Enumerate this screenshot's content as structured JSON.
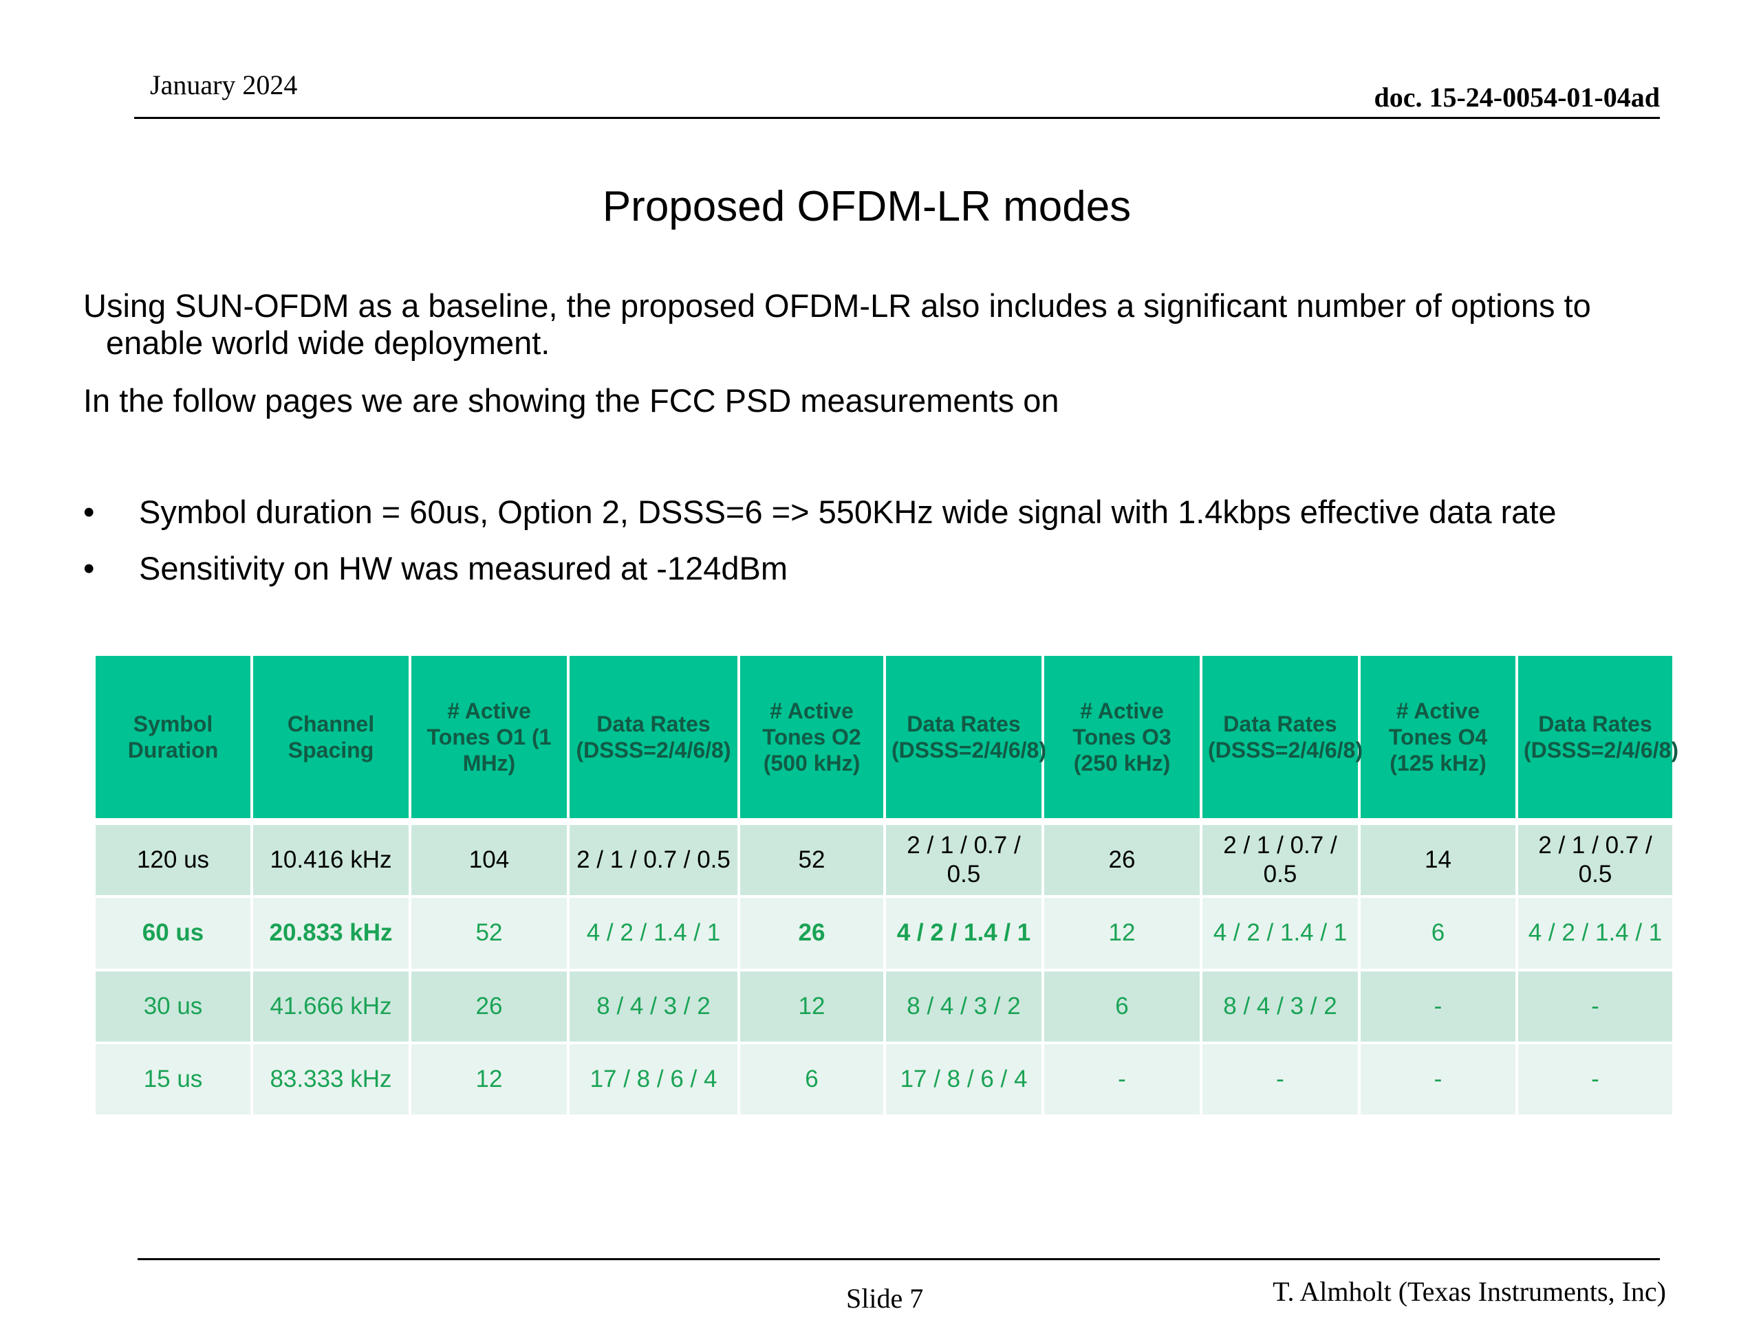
{
  "header": {
    "date": "January 2024",
    "doc": "doc. 15-24-0054-01-04ad"
  },
  "title": "Proposed OFDM-LR modes",
  "body": {
    "para1": "Using SUN-OFDM as a baseline, the proposed OFDM-LR also includes a significant number of options to enable world wide deployment.",
    "para2": "In the follow pages we are showing the FCC PSD measurements on"
  },
  "bullets": [
    {
      "marker": "•",
      "text": "Symbol duration = 60us, Option 2, DSSS=6 => 550KHz wide signal with 1.4kbps effective data rate"
    },
    {
      "marker": "•",
      "text": "Sensitivity on HW was measured at -124dBm"
    }
  ],
  "table": {
    "headers": [
      "Symbol Duration",
      "Channel Spacing",
      "# Active Tones O1 (1 MHz)",
      "Data Rates (DSSS=2/4/6/8)",
      "# Active Tones O2 (500 kHz)",
      "Data Rates (DSSS=2/4/6/8)",
      "# Active Tones O3 (250 kHz)",
      "Data Rates (DSSS=2/4/6/8)",
      "# Active Tones O4 (125 kHz)",
      "Data Rates (DSSS=2/4/6/8)"
    ],
    "rows": [
      [
        "120 us",
        "10.416 kHz",
        "104",
        "2 / 1 / 0.7 / 0.5",
        "52",
        "2 / 1 / 0.7 / 0.5",
        "26",
        "2 / 1 / 0.7 / 0.5",
        "14",
        "2 / 1 / 0.7 / 0.5"
      ],
      [
        "60 us",
        "20.833 kHz",
        "52",
        "4 / 2 / 1.4 / 1",
        "26",
        "4 / 2 / 1.4 / 1",
        "12",
        "4 / 2 / 1.4 / 1",
        "6",
        "4 / 2 / 1.4 / 1"
      ],
      [
        "30 us",
        "41.666 kHz",
        "26",
        "8 / 4 / 3 / 2",
        "12",
        "8 / 4 / 3 / 2",
        "6",
        "8 / 4 / 3 / 2",
        "-",
        "-"
      ],
      [
        "15 us",
        "83.333 kHz",
        "12",
        "17 / 8 / 6 / 4",
        "6",
        "17 / 8 / 6 / 4",
        "-",
        "-",
        "-",
        "-"
      ]
    ]
  },
  "footer": {
    "slide": "Slide 7",
    "author": "T. Almholt (Texas Instruments, Inc)"
  }
}
